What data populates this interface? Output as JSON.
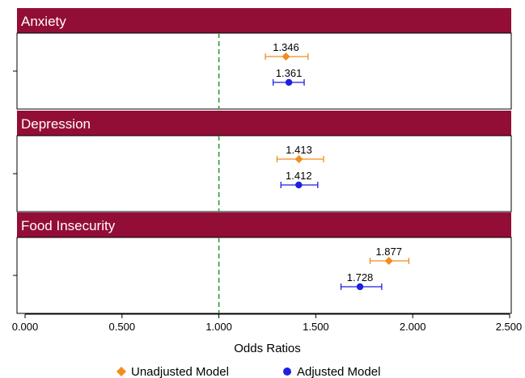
{
  "chart_data": {
    "type": "scatter",
    "xlabel": "Odds Ratios",
    "xlim": [
      0,
      2.5
    ],
    "x_ticks": [
      "0.000",
      "0.500",
      "1.000",
      "1.500",
      "2.000",
      "2.500"
    ],
    "reference_line": 1.0,
    "grid": false,
    "legend_position": "bottom",
    "legend": [
      {
        "name": "Unadjusted Model",
        "color": "#f28c1c",
        "marker": "diamond"
      },
      {
        "name": "Adjusted Model",
        "color": "#1f1fe0",
        "marker": "circle"
      }
    ],
    "panels": [
      {
        "title": "Anxiety",
        "points": [
          {
            "series": "Unadjusted Model",
            "value": 1.346,
            "ci_low": 1.24,
            "ci_high": 1.46,
            "label": "1.346"
          },
          {
            "series": "Adjusted Model",
            "value": 1.361,
            "ci_low": 1.28,
            "ci_high": 1.44,
            "label": "1.361"
          }
        ]
      },
      {
        "title": "Depression",
        "points": [
          {
            "series": "Unadjusted Model",
            "value": 1.413,
            "ci_low": 1.3,
            "ci_high": 1.54,
            "label": "1.413"
          },
          {
            "series": "Adjusted Model",
            "value": 1.412,
            "ci_low": 1.32,
            "ci_high": 1.51,
            "label": "1.412"
          }
        ]
      },
      {
        "title": "Food Insecurity",
        "points": [
          {
            "series": "Unadjusted Model",
            "value": 1.877,
            "ci_low": 1.78,
            "ci_high": 1.98,
            "label": "1.877"
          },
          {
            "series": "Adjusted Model",
            "value": 1.728,
            "ci_low": 1.63,
            "ci_high": 1.84,
            "label": "1.728"
          }
        ]
      }
    ],
    "colors": {
      "header": "#930e36",
      "reference_line": "#2e9a3a"
    }
  }
}
